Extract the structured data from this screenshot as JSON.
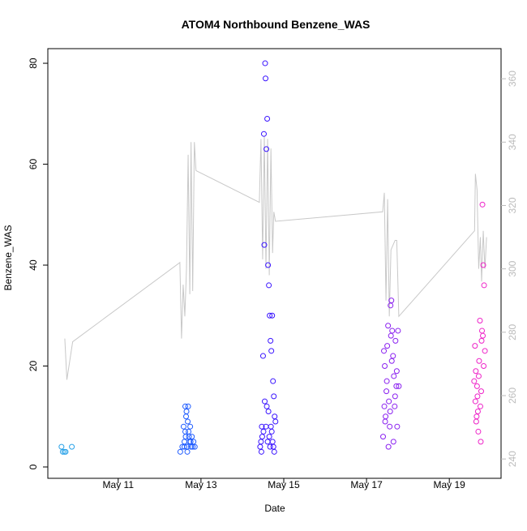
{
  "chart_data": {
    "type": "scatter",
    "title": "ATOM4 Northbound Benzene_WAS",
    "x_label": "Date",
    "y_label": "Benzene_WAS",
    "xlim": [
      9.3,
      20.25
    ],
    "xticks": [
      {
        "value": 11,
        "label": "May 11"
      },
      {
        "value": 13,
        "label": "May 13"
      },
      {
        "value": 15,
        "label": "May 15"
      },
      {
        "value": 17,
        "label": "May 17"
      },
      {
        "value": 19,
        "label": "May 19"
      }
    ],
    "ylim": [
      -2.25,
      82.9
    ],
    "yticks": [
      0,
      20,
      40,
      60,
      80
    ],
    "y2lim": [
      233.9,
      369.5
    ],
    "y2ticks": [
      240,
      260,
      280,
      300,
      320,
      340,
      360
    ],
    "series": [
      {
        "type": "line",
        "axis": "y2",
        "color": "#c8c8c8",
        "x": [
          9.71,
          9.76,
          9.9,
          12.49,
          12.53,
          12.57,
          12.61,
          12.65,
          12.69,
          12.73,
          12.76,
          12.8,
          12.84,
          12.88,
          14.41,
          14.45,
          14.49,
          14.53,
          14.57,
          14.61,
          14.65,
          14.69,
          14.73,
          14.76,
          14.8,
          17.39,
          17.43,
          17.47,
          17.51,
          17.55,
          17.59,
          17.69,
          17.73,
          17.78,
          19.61,
          19.63,
          19.67,
          19.71,
          19.75,
          19.78,
          19.82,
          19.86,
          19.9
        ],
        "values": [
          278,
          265,
          277,
          302,
          278,
          295,
          285,
          300,
          336,
          292,
          340,
          293,
          340,
          331,
          321,
          341,
          303,
          342,
          300,
          341,
          298,
          338,
          305,
          318,
          315,
          318,
          324,
          290,
          322,
          285,
          306,
          309,
          309,
          285,
          312,
          330,
          325,
          300,
          310,
          296,
          312,
          300,
          310
        ]
      },
      {
        "type": "scatter",
        "color": "#2aa2e8",
        "x": [
          9.63,
          9.66,
          9.7,
          9.73,
          9.88
        ],
        "values": [
          4,
          3,
          3,
          3,
          4
        ]
      },
      {
        "type": "scatter",
        "color": "#1f5cff",
        "x": [
          12.5,
          12.55,
          12.58,
          12.6,
          12.62,
          12.63,
          12.65,
          12.66,
          12.68,
          12.7,
          12.72,
          12.74,
          12.76,
          12.78,
          12.8,
          12.82,
          12.85,
          12.6,
          12.64,
          12.67,
          12.71,
          12.75,
          12.62,
          12.69
        ],
        "values": [
          3,
          4,
          8,
          5,
          12,
          6,
          11,
          4,
          9,
          7,
          5,
          8,
          4,
          6,
          4,
          5,
          4,
          4,
          10,
          3,
          6,
          5,
          7,
          12
        ]
      },
      {
        "type": "scatter",
        "color": "#3a14ff",
        "x": [
          14.43,
          14.45,
          14.47,
          14.5,
          14.52,
          14.53,
          14.55,
          14.56,
          14.58,
          14.6,
          14.62,
          14.64,
          14.66,
          14.68,
          14.7,
          14.72,
          14.74,
          14.76,
          14.78,
          14.8,
          14.46,
          14.48,
          14.51,
          14.54,
          14.57,
          14.59,
          14.61,
          14.63,
          14.65,
          14.67,
          14.69,
          14.71,
          14.73,
          14.75,
          14.77
        ],
        "values": [
          4,
          5,
          8,
          22,
          66,
          44,
          80,
          77,
          63,
          69,
          40,
          36,
          30,
          25,
          23,
          30,
          17,
          14,
          10,
          9,
          3,
          6,
          7,
          13,
          8,
          12,
          5,
          11,
          6,
          4,
          8,
          7,
          5,
          4,
          3
        ]
      },
      {
        "type": "scatter",
        "color": "#8a20f0",
        "x": [
          17.4,
          17.42,
          17.44,
          17.46,
          17.48,
          17.5,
          17.52,
          17.54,
          17.56,
          17.58,
          17.6,
          17.62,
          17.64,
          17.66,
          17.68,
          17.7,
          17.72,
          17.74,
          17.76,
          17.78,
          17.45,
          17.49,
          17.53,
          17.57,
          17.61,
          17.65,
          17.69,
          17.73,
          17.43,
          17.59
        ],
        "values": [
          6,
          23,
          20,
          10,
          15,
          24,
          28,
          13,
          8,
          32,
          33,
          27,
          22,
          18,
          12,
          25,
          16,
          8,
          27,
          16,
          9,
          17,
          4,
          11,
          21,
          5,
          14,
          19,
          12,
          26
        ]
      },
      {
        "type": "scatter",
        "color": "#ee22c8",
        "x": [
          19.6,
          19.62,
          19.64,
          19.66,
          19.68,
          19.7,
          19.72,
          19.74,
          19.76,
          19.78,
          19.8,
          19.82,
          19.84,
          19.86,
          19.63,
          19.67,
          19.71,
          19.75,
          19.79,
          19.83,
          19.65,
          19.77,
          19.69,
          19.81
        ],
        "values": [
          17,
          24,
          19,
          10,
          14,
          7,
          21,
          29,
          5,
          25,
          52,
          40,
          36,
          23,
          13,
          16,
          18,
          12,
          27,
          20,
          9,
          15,
          11,
          26
        ]
      }
    ]
  }
}
